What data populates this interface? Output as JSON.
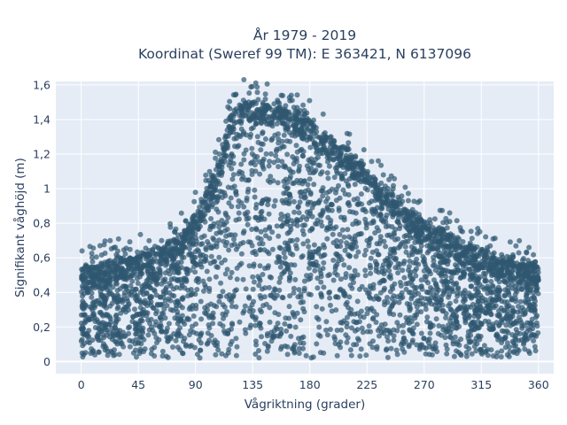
{
  "chart_data": {
    "type": "scatter",
    "title_line1": "År 1979 - 2019",
    "title_line2": "Koordinat (Sweref 99 TM): E 363421, N 6137096",
    "xlabel": "Vågriktning (grader)",
    "ylabel": "Signifikant våghöjd (m)",
    "xlim": [
      -20,
      372
    ],
    "ylim": [
      -0.07,
      1.62
    ],
    "x_ticks": [
      0,
      45,
      90,
      135,
      180,
      225,
      270,
      315,
      360
    ],
    "x_tick_labels": [
      "0",
      "45",
      "90",
      "135",
      "180",
      "225",
      "270",
      "315",
      "360"
    ],
    "y_ticks": [
      0,
      0.2,
      0.4,
      0.6,
      0.8,
      1.0,
      1.2,
      1.4,
      1.6
    ],
    "y_tick_labels": [
      "0",
      "0,2",
      "0,4",
      "0,6",
      "0,8",
      "1",
      "1,2",
      "1,4",
      "1,6"
    ],
    "grid": true,
    "background_color": "#e5ecf6",
    "marker_color": "#2f5770",
    "upper_envelope": {
      "direction": [
        0,
        10,
        20,
        30,
        45,
        60,
        75,
        90,
        100,
        105,
        110,
        115,
        120,
        125,
        130,
        135,
        140,
        150,
        160,
        170,
        180,
        190,
        200,
        210,
        225,
        240,
        255,
        270,
        285,
        300,
        315,
        330,
        345,
        360
      ],
      "max_height": [
        0.55,
        0.56,
        0.58,
        0.6,
        0.62,
        0.66,
        0.72,
        0.86,
        1.0,
        1.1,
        1.2,
        1.36,
        1.46,
        1.5,
        1.52,
        1.5,
        1.5,
        1.5,
        1.49,
        1.45,
        1.4,
        1.33,
        1.28,
        1.22,
        1.12,
        1.0,
        0.9,
        0.82,
        0.76,
        0.7,
        0.64,
        0.6,
        0.58,
        0.56
      ]
    },
    "min_height_approx": 0.02
  }
}
